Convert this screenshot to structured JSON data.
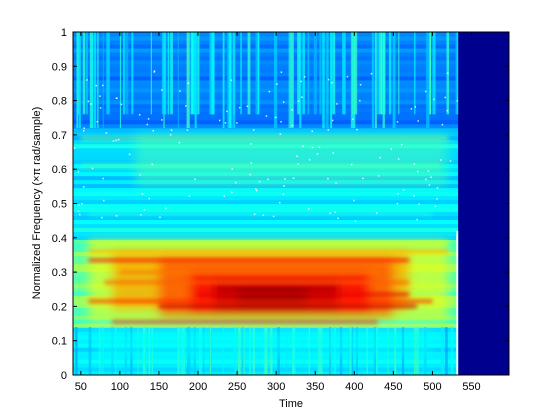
{
  "chart_data": {
    "type": "heatmap",
    "xlabel": "Time",
    "ylabel": "Normalized Frequency  (×π rad/sample)",
    "xlim": [
      40,
      598
    ],
    "ylim": [
      0,
      1
    ],
    "xticks": [
      50,
      100,
      150,
      200,
      250,
      300,
      350,
      400,
      450,
      500,
      550
    ],
    "yticks": [
      0,
      0.1,
      0.2,
      0.3,
      0.4,
      0.5,
      0.6,
      0.7,
      0.8,
      0.9,
      1
    ],
    "colormap": "jet",
    "signal_end_time": 533,
    "grid": false,
    "colors": {
      "background_low": "#00008f",
      "low": "#0050ff",
      "mid": "#40ffbf",
      "high": "#ffff00",
      "peak": "#800000"
    },
    "energy_bands": [
      {
        "freq_range": [
          0.14,
          0.4
        ],
        "time_range": [
          60,
          533
        ],
        "level": "high",
        "peak_region": {
          "time": [
            200,
            420
          ],
          "freq": [
            0.17,
            0.3
          ]
        }
      },
      {
        "freq_range": [
          0.4,
          0.72
        ],
        "time_range": [
          40,
          533
        ],
        "level": "medium"
      },
      {
        "freq_range": [
          0.72,
          1.0
        ],
        "time_range": [
          40,
          533
        ],
        "level": "low"
      },
      {
        "freq_range": [
          0,
          0.14
        ],
        "time_range": [
          40,
          533
        ],
        "level": "medium-low"
      },
      {
        "freq_range": [
          0,
          1.0
        ],
        "time_range": [
          533,
          598
        ],
        "level": "minimum"
      }
    ]
  }
}
